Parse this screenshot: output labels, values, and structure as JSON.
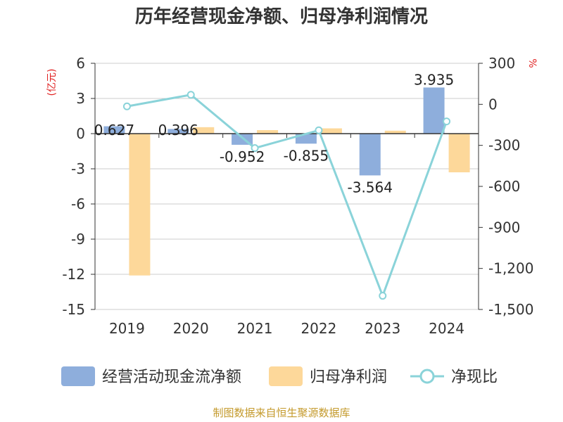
{
  "chart_data": {
    "type": "bar+line",
    "title": "历年经营现金净额、归母净利润情况",
    "categories": [
      "2019",
      "2020",
      "2021",
      "2022",
      "2023",
      "2024"
    ],
    "left_axis": {
      "unit": "(亿元)",
      "ticks": [
        "6",
        "3",
        "0",
        "-3",
        "-6",
        "-9",
        "-12",
        "-15"
      ],
      "min": -15,
      "max": 6
    },
    "right_axis": {
      "unit": "%",
      "ticks": [
        "300",
        "0",
        "-300",
        "-600",
        "-900",
        "-1,200",
        "-1,500"
      ],
      "min": -1500,
      "max": 300
    },
    "series": [
      {
        "name": "经营活动现金流净额",
        "axis": "left",
        "kind": "bar",
        "color": "#8EAEDC",
        "values": [
          0.627,
          0.396,
          -0.952,
          -0.855,
          -3.564,
          3.935
        ],
        "labels": [
          "0.627",
          "0.396",
          "-0.952",
          "-0.855",
          "-3.564",
          "3.935"
        ]
      },
      {
        "name": "归母净利润",
        "axis": "left",
        "kind": "bar",
        "color": "#FDD89A",
        "values": [
          -12.1,
          0.55,
          0.3,
          0.45,
          0.25,
          -3.3
        ]
      },
      {
        "name": "净现比",
        "axis": "right",
        "kind": "line",
        "color": "#8AD3D9",
        "values": [
          -15,
          70,
          -320,
          -190,
          -1400,
          -125
        ]
      }
    ],
    "source": "制图数据来自恒生聚源数据库"
  }
}
